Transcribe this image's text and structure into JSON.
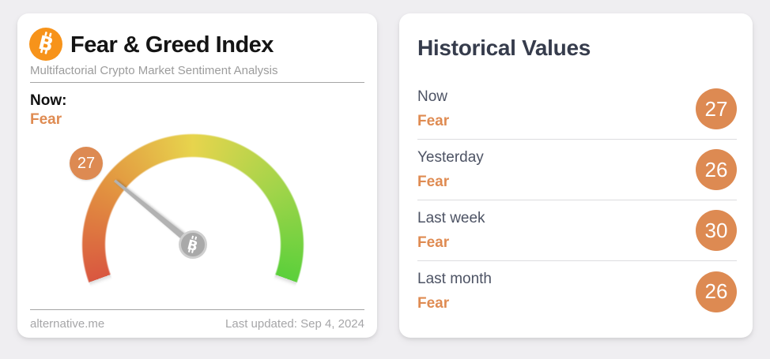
{
  "page": {
    "background_color": "#efeef1",
    "accent_color": "#dd8a52"
  },
  "fear_greed_card": {
    "icon_color": "#f7931a",
    "title": "Fear & Greed Index",
    "subtitle": "Multifactorial Crypto Market Sentiment Analysis",
    "now_label": "Now:",
    "now_classification": "Fear",
    "gauge_badge": "27",
    "footer": {
      "source": "alternative.me",
      "last_updated": "Last updated: Sep 4, 2024"
    }
  },
  "historical_card": {
    "title": "Historical Values",
    "rows": [
      {
        "label": "Now",
        "classification": "Fear",
        "value": "27"
      },
      {
        "label": "Yesterday",
        "classification": "Fear",
        "value": "26"
      },
      {
        "label": "Last week",
        "classification": "Fear",
        "value": "30"
      },
      {
        "label": "Last month",
        "classification": "Fear",
        "value": "26"
      }
    ]
  },
  "chart_data": {
    "type": "gauge",
    "title": "Fear & Greed Index",
    "value": 27,
    "min": 0,
    "max": 100,
    "classification": "Fear",
    "sweep_degrees": 220,
    "scale_stops": [
      {
        "value": 0,
        "color": "#d95740"
      },
      {
        "value": 25,
        "color": "#e29440"
      },
      {
        "value": 50,
        "color": "#e7d44d"
      },
      {
        "value": 75,
        "color": "#a3d44a"
      },
      {
        "value": 100,
        "color": "#5bd03b"
      }
    ],
    "needle_color": "#b2b2b2",
    "hub_color": "#a9a9a9",
    "historical": {
      "categories": [
        "Now",
        "Yesterday",
        "Last week",
        "Last month"
      ],
      "values": [
        27,
        26,
        30,
        26
      ],
      "classifications": [
        "Fear",
        "Fear",
        "Fear",
        "Fear"
      ]
    }
  }
}
